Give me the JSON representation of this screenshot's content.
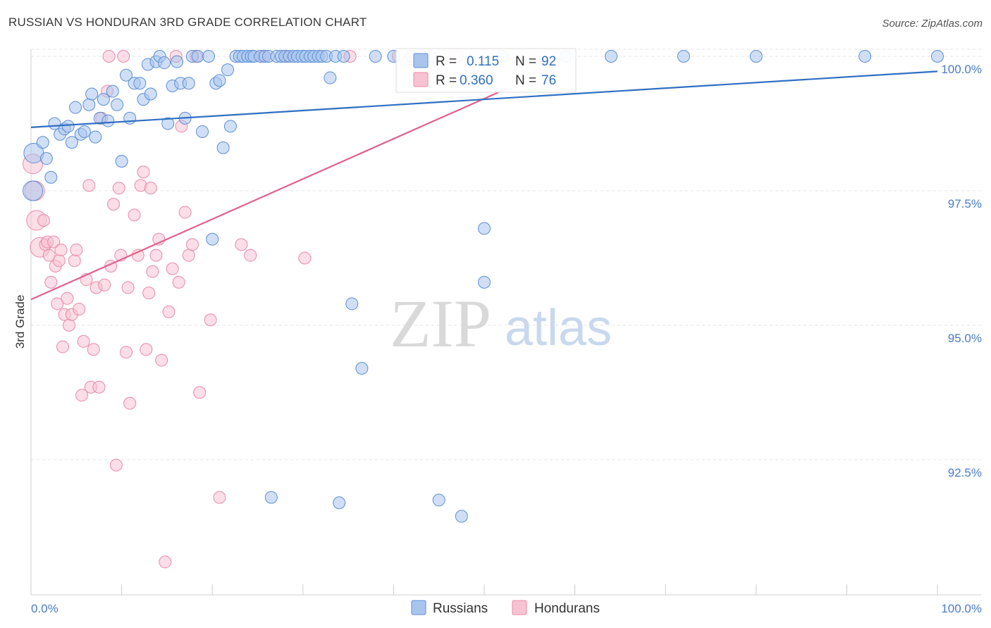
{
  "chart_data": {
    "type": "scatter",
    "title": "RUSSIAN VS HONDURAN 3RD GRADE CORRELATION CHART",
    "source": "Source: ZipAtlas.com",
    "xlabel": "",
    "ylabel": "3rd Grade",
    "xlim": [
      0,
      100
    ],
    "ylim": [
      89.8,
      100.5
    ],
    "x_tick_labels": [
      "0.0%",
      "100.0%"
    ],
    "y_ticks": [
      92.5,
      95.0,
      97.5,
      100.0
    ],
    "y_tick_labels": [
      "92.5%",
      "95.0%",
      "97.5%",
      "100.0%"
    ],
    "watermark": {
      "part1": "ZIP",
      "part2": "atlas"
    },
    "colors": {
      "russians": "#5b8fd6",
      "russians_line": "#2f6fc2",
      "hondurans": "#e88aa8",
      "hondurans_line": "#e0608a",
      "accent": "#2f6fc2"
    },
    "legend": {
      "r_label": "R =",
      "n_label": "N =",
      "entries": [
        {
          "name": "Russians",
          "r": "0.115",
          "n": "92"
        },
        {
          "name": "Hondurans",
          "r": "0.360",
          "n": "76"
        }
      ]
    },
    "series": [
      {
        "name": "Russians",
        "trend": {
          "x": [
            0,
            100
          ],
          "y": [
            98.68,
            99.72
          ]
        },
        "points": [
          [
            0.2,
            97.5
          ],
          [
            0.3,
            98.2
          ],
          [
            1.3,
            98.4
          ],
          [
            1.7,
            98.1
          ],
          [
            2.2,
            97.75
          ],
          [
            2.6,
            98.75
          ],
          [
            3.2,
            98.55
          ],
          [
            3.7,
            98.65
          ],
          [
            4.1,
            98.7
          ],
          [
            4.5,
            98.4
          ],
          [
            4.9,
            99.05
          ],
          [
            5.5,
            98.55
          ],
          [
            5.9,
            98.6
          ],
          [
            6.4,
            99.1
          ],
          [
            6.7,
            99.3
          ],
          [
            7.1,
            98.5
          ],
          [
            7.6,
            98.85
          ],
          [
            8.0,
            99.2
          ],
          [
            8.5,
            98.8
          ],
          [
            9.0,
            99.35
          ],
          [
            9.5,
            99.1
          ],
          [
            10.0,
            98.05
          ],
          [
            10.5,
            99.65
          ],
          [
            10.9,
            98.85
          ],
          [
            11.4,
            99.5
          ],
          [
            12.0,
            99.5
          ],
          [
            12.4,
            99.2
          ],
          [
            12.9,
            99.85
          ],
          [
            13.2,
            99.3
          ],
          [
            13.8,
            99.9
          ],
          [
            14.2,
            100.0
          ],
          [
            14.7,
            99.88
          ],
          [
            15.1,
            98.75
          ],
          [
            15.6,
            99.45
          ],
          [
            16.1,
            99.9
          ],
          [
            16.5,
            99.5
          ],
          [
            17.0,
            98.85
          ],
          [
            17.4,
            99.5
          ],
          [
            17.8,
            100.0
          ],
          [
            18.4,
            100.0
          ],
          [
            18.9,
            98.6
          ],
          [
            19.6,
            100.0
          ],
          [
            20.0,
            96.6
          ],
          [
            20.4,
            99.5
          ],
          [
            20.8,
            99.55
          ],
          [
            21.2,
            98.3
          ],
          [
            21.7,
            99.75
          ],
          [
            22.0,
            98.7
          ],
          [
            22.6,
            100.0
          ],
          [
            23.0,
            100.0
          ],
          [
            23.4,
            100.0
          ],
          [
            23.9,
            100.0
          ],
          [
            24.3,
            100.0
          ],
          [
            24.6,
            100.0
          ],
          [
            25.3,
            100.0
          ],
          [
            25.8,
            100.0
          ],
          [
            26.2,
            100.0
          ],
          [
            26.5,
            91.8
          ],
          [
            27.1,
            100.0
          ],
          [
            27.6,
            100.0
          ],
          [
            28.0,
            100.0
          ],
          [
            28.5,
            100.0
          ],
          [
            29.0,
            100.0
          ],
          [
            29.4,
            100.0
          ],
          [
            29.9,
            100.0
          ],
          [
            30.3,
            100.0
          ],
          [
            30.8,
            100.0
          ],
          [
            31.2,
            100.0
          ],
          [
            31.7,
            100.0
          ],
          [
            32.1,
            100.0
          ],
          [
            32.6,
            100.0
          ],
          [
            33.0,
            99.6
          ],
          [
            33.6,
            100.0
          ],
          [
            34.0,
            91.7
          ],
          [
            34.5,
            100.0
          ],
          [
            35.4,
            95.4
          ],
          [
            36.5,
            94.2
          ],
          [
            38.0,
            100.0
          ],
          [
            40.0,
            100.0
          ],
          [
            42.0,
            100.0
          ],
          [
            44.0,
            100.0
          ],
          [
            45.0,
            91.75
          ],
          [
            47.5,
            91.45
          ],
          [
            50.0,
            96.8
          ],
          [
            50.0,
            95.8
          ],
          [
            52.0,
            100.0
          ],
          [
            59.0,
            100.0
          ],
          [
            64.0,
            100.0
          ],
          [
            72.0,
            100.0
          ],
          [
            80.0,
            100.0
          ],
          [
            92.0,
            100.0
          ],
          [
            100.0,
            100.0
          ]
        ]
      },
      {
        "name": "Hondurans",
        "trend": {
          "x": [
            0,
            52.5
          ],
          "y": [
            95.48,
            99.4
          ]
        },
        "points": [
          [
            0.2,
            98.0
          ],
          [
            0.4,
            97.5
          ],
          [
            0.6,
            96.95
          ],
          [
            1.0,
            96.45
          ],
          [
            1.4,
            96.95
          ],
          [
            1.6,
            96.5
          ],
          [
            1.8,
            96.55
          ],
          [
            2.0,
            96.3
          ],
          [
            2.2,
            95.8
          ],
          [
            2.5,
            96.55
          ],
          [
            2.7,
            96.1
          ],
          [
            2.9,
            95.4
          ],
          [
            3.1,
            96.2
          ],
          [
            3.3,
            96.4
          ],
          [
            3.5,
            94.6
          ],
          [
            3.7,
            95.2
          ],
          [
            4.0,
            95.5
          ],
          [
            4.2,
            95.0
          ],
          [
            4.5,
            95.2
          ],
          [
            4.8,
            96.2
          ],
          [
            5.0,
            96.4
          ],
          [
            5.3,
            95.3
          ],
          [
            5.6,
            93.7
          ],
          [
            5.8,
            94.7
          ],
          [
            6.1,
            95.85
          ],
          [
            6.4,
            97.6
          ],
          [
            6.6,
            93.85
          ],
          [
            6.9,
            94.55
          ],
          [
            7.2,
            95.7
          ],
          [
            7.5,
            93.85
          ],
          [
            7.8,
            98.85
          ],
          [
            8.1,
            95.75
          ],
          [
            8.4,
            99.35
          ],
          [
            8.6,
            100.0
          ],
          [
            8.8,
            96.1
          ],
          [
            9.1,
            97.25
          ],
          [
            9.4,
            92.4
          ],
          [
            9.7,
            97.55
          ],
          [
            9.9,
            96.3
          ],
          [
            10.2,
            100.0
          ],
          [
            10.5,
            94.5
          ],
          [
            10.7,
            95.7
          ],
          [
            10.9,
            93.55
          ],
          [
            11.4,
            97.05
          ],
          [
            11.8,
            96.3
          ],
          [
            12.1,
            97.6
          ],
          [
            12.4,
            97.85
          ],
          [
            12.7,
            94.55
          ],
          [
            13.0,
            95.6
          ],
          [
            13.2,
            97.55
          ],
          [
            13.4,
            96.0
          ],
          [
            13.8,
            96.3
          ],
          [
            14.1,
            96.6
          ],
          [
            14.4,
            94.35
          ],
          [
            14.8,
            90.6
          ],
          [
            15.2,
            95.25
          ],
          [
            15.6,
            96.05
          ],
          [
            16.0,
            100.0
          ],
          [
            16.3,
            95.8
          ],
          [
            16.6,
            98.7
          ],
          [
            17.0,
            97.1
          ],
          [
            17.4,
            96.3
          ],
          [
            17.8,
            96.5
          ],
          [
            18.2,
            100.0
          ],
          [
            18.6,
            93.75
          ],
          [
            19.8,
            95.1
          ],
          [
            20.8,
            91.8
          ],
          [
            23.2,
            96.5
          ],
          [
            24.2,
            96.3
          ],
          [
            25.6,
            100.0
          ],
          [
            28.2,
            100.0
          ],
          [
            30.2,
            96.25
          ],
          [
            35.2,
            100.0
          ],
          [
            40.5,
            100.0
          ],
          [
            43.2,
            100.0
          ],
          [
            47.0,
            100.0
          ]
        ]
      }
    ]
  }
}
